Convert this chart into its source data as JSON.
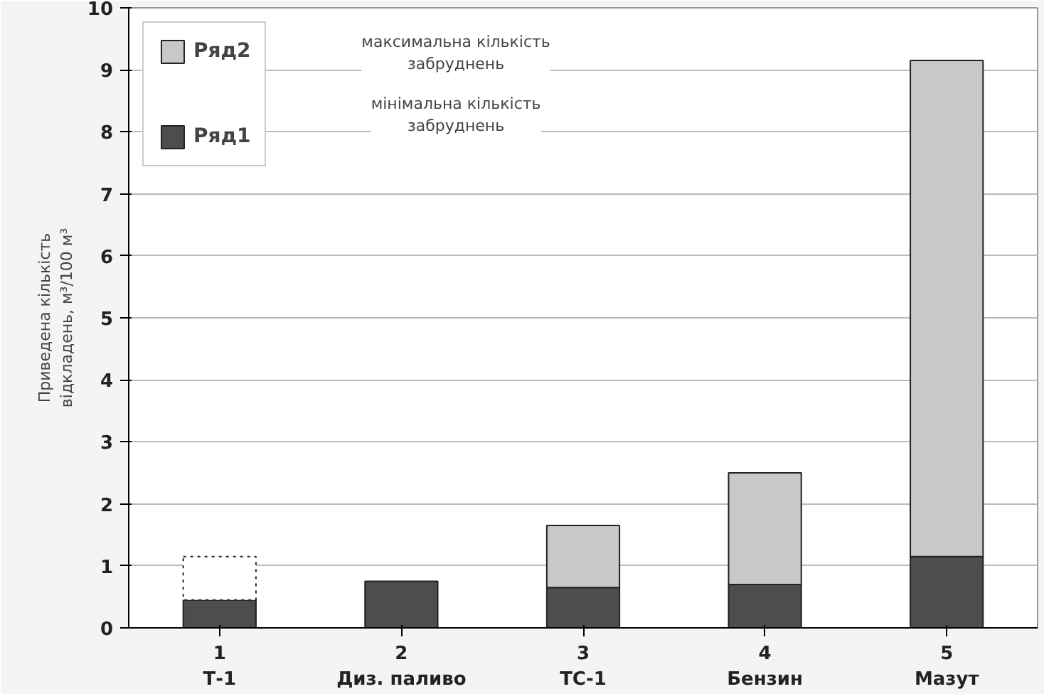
{
  "chart_data": {
    "type": "bar",
    "stacked": true,
    "categories": [
      "1\nТ-1",
      "2\nДиз. паливо",
      "3\nТС-1",
      "4\nБензин",
      "5\nМазут"
    ],
    "series": [
      {
        "name": "Ряд1",
        "color": "#4d4d4d",
        "values": [
          0.45,
          0.75,
          0.65,
          0.7,
          1.15
        ]
      },
      {
        "name": "Ряд2",
        "color": "#c8c8c8",
        "colors": [
          "#ffffff",
          "#c8c8c8",
          "#c8c8c8",
          "#c8c8c8",
          "#c8c8c8"
        ],
        "values": [
          0.7,
          null,
          1.0,
          1.8,
          8.0
        ]
      }
    ],
    "ylabel": "Приведена кількість\nвідкладень, м³/100 м³",
    "ylim": [
      0,
      10
    ],
    "yticks": [
      0,
      1,
      2,
      3,
      4,
      5,
      6,
      7,
      8,
      9,
      10
    ],
    "grid": "y",
    "legend": "top left",
    "annotations": [
      "максимальна кількість\nзабруднень",
      "мінімальна кількість\nзабруднень"
    ]
  }
}
